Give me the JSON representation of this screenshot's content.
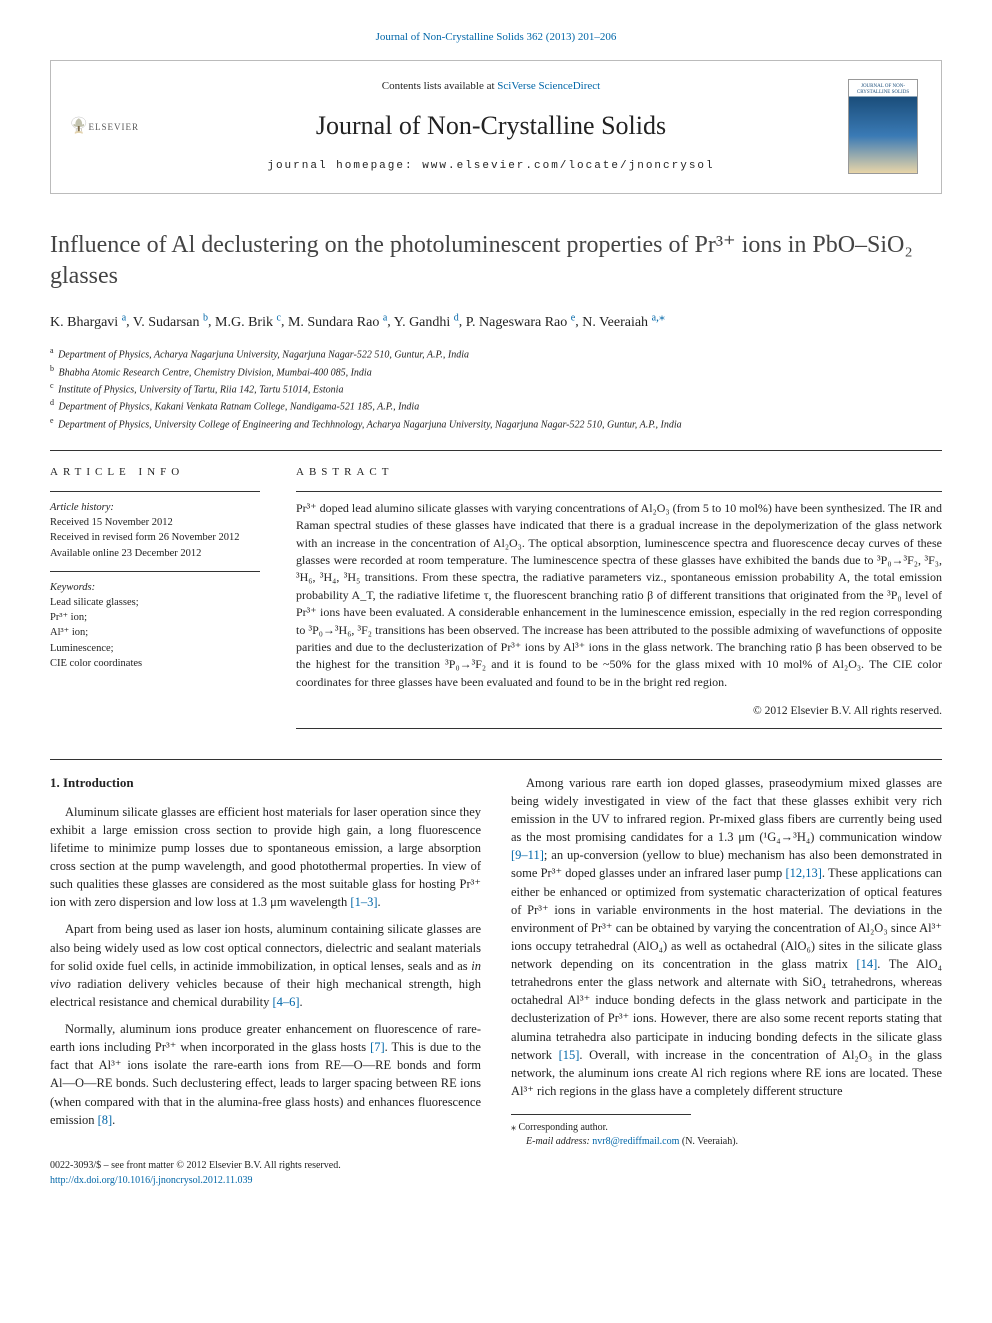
{
  "top_link": {
    "text": "Journal of Non-Crystalline Solids 362 (2013) 201–206",
    "color": "#0066a8"
  },
  "banner": {
    "contents_prefix": "Contents lists available at ",
    "contents_link": "SciVerse ScienceDirect",
    "journal_name": "Journal of Non-Crystalline Solids",
    "homepage_prefix": "journal homepage: ",
    "homepage_url": "www.elsevier.com/locate/jnoncrysol",
    "publisher_label": "ELSEVIER",
    "cover_label": "JOURNAL OF NON-CRYSTALLINE SOLIDS",
    "colors": {
      "border": "#bbbbbb",
      "link": "#0066a8",
      "elsevier_orange": "#e67817"
    }
  },
  "title": "Influence of Al declustering on the photoluminescent properties of Pr³⁺ ions in PbO–SiO₂ glasses",
  "authors": [
    {
      "name": "K. Bhargavi",
      "aff": "a"
    },
    {
      "name": "V. Sudarsan",
      "aff": "b"
    },
    {
      "name": "M.G. Brik",
      "aff": "c"
    },
    {
      "name": "M. Sundara Rao",
      "aff": "a"
    },
    {
      "name": "Y. Gandhi",
      "aff": "d"
    },
    {
      "name": "P. Nageswara Rao",
      "aff": "e"
    },
    {
      "name": "N. Veeraiah",
      "aff": "a",
      "corr": true
    }
  ],
  "affiliations": [
    {
      "sup": "a",
      "text": "Department of Physics, Acharya Nagarjuna University, Nagarjuna Nagar-522 510, Guntur, A.P., India"
    },
    {
      "sup": "b",
      "text": "Bhabha Atomic Research Centre, Chemistry Division, Mumbai-400 085, India"
    },
    {
      "sup": "c",
      "text": "Institute of Physics, University of Tartu, Riia 142, Tartu 51014, Estonia"
    },
    {
      "sup": "d",
      "text": "Department of Physics, Kakani Venkata Ratnam College, Nandigama-521 185, A.P., India"
    },
    {
      "sup": "e",
      "text": "Department of Physics, University College of Engineering and Techhnology, Acharya Nagarjuna University, Nagarjuna Nagar-522 510, Guntur, A.P., India"
    }
  ],
  "article_info": {
    "heading": "ARTICLE INFO",
    "history_label": "Article history:",
    "history": [
      "Received 15 November 2012",
      "Received in revised form 26 November 2012",
      "Available online 23 December 2012"
    ],
    "keywords_label": "Keywords:",
    "keywords": [
      "Lead silicate glasses;",
      "Pr³⁺ ion;",
      "Al³⁺ ion;",
      "Luminescence;",
      "CIE color coordinates"
    ]
  },
  "abstract": {
    "heading": "ABSTRACT",
    "text": "Pr³⁺ doped lead alumino silicate glasses with varying concentrations of Al₂O₃ (from 5 to 10 mol%) have been synthesized. The IR and Raman spectral studies of these glasses have indicated that there is a gradual increase in the depolymerization of the glass network with an increase in the concentration of Al₂O₃. The optical absorption, luminescence spectra and fluorescence decay curves of these glasses were recorded at room temperature. The luminescence spectra of these glasses have exhibited the bands due to ³P₀→³F₂, ³F₃, ³H₆, ³H₄, ³H₅ transitions. From these spectra, the radiative parameters viz., spontaneous emission probability A, the total emission probability A_T, the radiative lifetime τ, the fluorescent branching ratio β of different transitions that originated from the ³P₀ level of Pr³⁺ ions have been evaluated. A considerable enhancement in the luminescence emission, especially in the red region corresponding to ³P₀→³H₆, ³F₂ transitions has been observed. The increase has been attributed to the possible admixing of wavefunctions of opposite parities and due to the declusterization of Pr³⁺ ions by Al³⁺ ions in the glass network. The branching ratio β has been observed to be the highest for the transition ³P₀→³F₂ and it is found to be ~50% for the glass mixed with 10 mol% of Al₂O₃. The CIE color coordinates for three glasses have been evaluated and found to be in the bright red region.",
    "copyright": "© 2012 Elsevier B.V. All rights reserved."
  },
  "body": {
    "section_heading": "1. Introduction",
    "paragraphs": [
      "Aluminum silicate glasses are efficient host materials for laser operation since they exhibit a large emission cross section to provide high gain, a long fluorescence lifetime to minimize pump losses due to spontaneous emission, a large absorption cross section at the pump wavelength, and good photothermal properties. In view of such qualities these glasses are considered as the most suitable glass for hosting Pr³⁺ ion with zero dispersion and low loss at 1.3 μm wavelength [1–3].",
      "Apart from being used as laser ion hosts, aluminum containing silicate glasses are also being widely used as low cost optical connectors, dielectric and sealant materials for solid oxide fuel cells, in actinide immobilization, in optical lenses, seals and as in vivo radiation delivery vehicles because of their high mechanical strength, high electrical resistance and chemical durability [4–6].",
      "Normally, aluminum ions produce greater enhancement on fluorescence of rare-earth ions including Pr³⁺ when incorporated in the glass hosts [7]. This is due to the fact that Al³⁺ ions isolate the rare-earth ions from RE―O―RE bonds and form Al―O―RE bonds. Such declustering effect, leads to larger spacing between RE ions (when compared with that in the alumina-free glass hosts) and enhances fluorescence emission [8].",
      "Among various rare earth ion doped glasses, praseodymium mixed glasses are being widely investigated in view of the fact that these glasses exhibit very rich emission in the UV to infrared region. Pr-mixed glass fibers are currently being used as the most promising candidates for a 1.3 μm (¹G₄→³H₄) communication window [9–11]; an up-conversion (yellow to blue) mechanism has also been demonstrated in some Pr³⁺ doped glasses under an infrared laser pump [12,13]. These applications can either be enhanced or optimized from systematic characterization of optical features of Pr³⁺ ions in variable environments in the host material. The deviations in the environment of Pr³⁺ can be obtained by varying the concentration of Al₂O₃ since Al³⁺ ions occupy tetrahedral (AlO₄) as well as octahedral (AlO₆) sites in the silicate glass network depending on its concentration in the glass matrix [14]. The AlO₄ tetrahedrons enter the glass network and alternate with SiO₄ tetrahedrons, whereas octahedral Al³⁺ induce bonding defects in the glass network and participate in the declusterization of Pr³⁺ ions. However, there are also some recent reports stating that alumina tetrahedra also participate in inducing bonding defects in the silicate glass network [15]. Overall, with increase in the concentration of Al₂O₃ in the glass network, the aluminum ions create Al rich regions where RE ions are located. These Al³⁺ rich regions in the glass have a completely different structure"
    ],
    "ref_markers": [
      "[1–3]",
      "[4–6]",
      "[7]",
      "[8]",
      "[9–11]",
      "[12,13]",
      "[14]",
      "[15]"
    ]
  },
  "footnote": {
    "corr_marker": "⁎",
    "corr_label": "Corresponding author.",
    "email_label": "E-mail address:",
    "email": "nvr8@rediffmail.com",
    "email_name": "(N. Veeraiah)."
  },
  "bottom": {
    "left": "0022-3093/$ – see front matter © 2012 Elsevier B.V. All rights reserved.",
    "doi": "http://dx.doi.org/10.1016/j.jnoncrysol.2012.11.039"
  },
  "colors": {
    "link": "#0066a8",
    "text": "#222222",
    "heading": "#444444",
    "rule": "#333333"
  }
}
